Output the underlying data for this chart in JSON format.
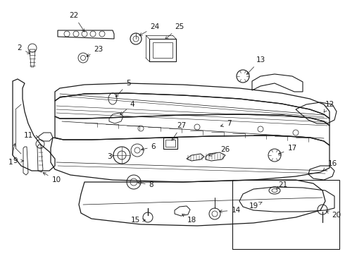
{
  "background_color": "#ffffff",
  "line_color": "#1a1a1a",
  "figsize": [
    4.9,
    3.6
  ],
  "dpi": 100
}
